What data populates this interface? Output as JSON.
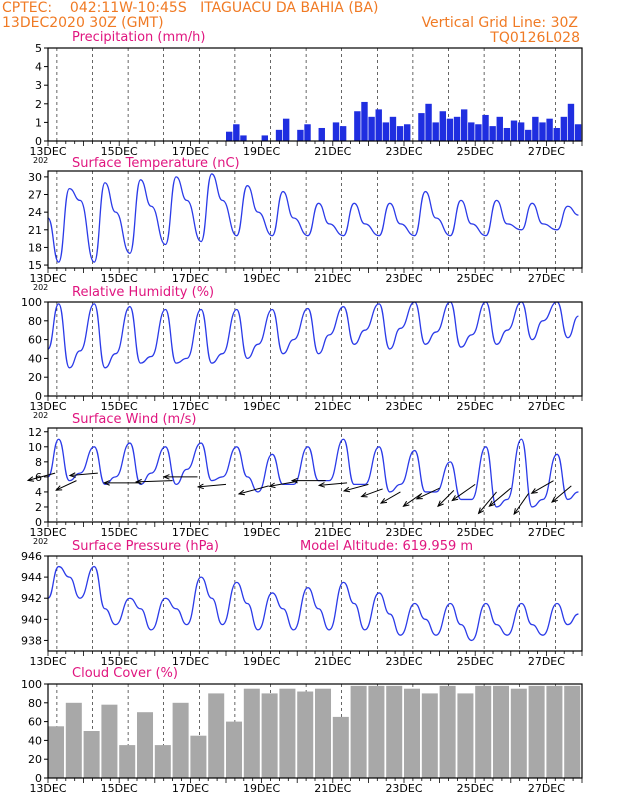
{
  "header": {
    "line1": "CPTEC:    042:11W-10:45S   ITAGUACU DA BAHIA (BA)",
    "line2_left": "13DEC2020 30Z (GMT)",
    "line2_right": "Vertical Grid Line: 30Z",
    "line3_right": "TQ0126L028"
  },
  "colors": {
    "header": "#f07a24",
    "panel_title": "#e0157f",
    "series_line": "#2b3be8",
    "precip_bars": "#1f2ee0",
    "wind_arrows": "#000000",
    "cloud_bars": "#a8a8a8"
  },
  "chart_data": [
    {
      "id": "precip",
      "type": "bar",
      "title": "Precipitation (mm/h)",
      "ylim": [
        0,
        5
      ],
      "yticks": [
        0,
        1,
        2,
        3,
        4,
        5
      ],
      "x_labels": [
        "13DEC",
        "15DEC",
        "17DEC",
        "19DEC",
        "21DEC",
        "23DEC",
        "25DEC",
        "27DEC"
      ],
      "x_stub": "202",
      "x": [
        "18.0",
        "18.2",
        "18.4",
        "19.0",
        "19.4",
        "19.6",
        "20.0",
        "20.2",
        "20.6",
        "21.0",
        "21.2",
        "21.6",
        "21.8",
        "22.0",
        "22.2",
        "22.4",
        "22.6",
        "22.8",
        "23.0",
        "23.4",
        "23.6",
        "23.8",
        "24.0",
        "24.2",
        "24.4",
        "24.6",
        "24.8",
        "25.0",
        "25.2",
        "25.4",
        "25.6",
        "25.8",
        "26.0",
        "26.2",
        "26.4",
        "26.6",
        "26.8",
        "27.0",
        "27.2",
        "27.4",
        "27.6",
        "27.8"
      ],
      "values": [
        0.5,
        0.9,
        0.3,
        0.3,
        0.6,
        1.2,
        0.6,
        0.9,
        0.7,
        1.0,
        0.8,
        1.6,
        2.1,
        1.3,
        1.7,
        1.0,
        1.3,
        0.8,
        0.9,
        1.5,
        2.0,
        1.0,
        1.6,
        1.2,
        1.3,
        1.7,
        1.0,
        0.9,
        1.4,
        0.8,
        1.3,
        0.7,
        1.1,
        1.0,
        0.6,
        1.3,
        1.0,
        1.2,
        0.7,
        1.3,
        2.0,
        0.9
      ],
      "grid": "vertical dashed"
    },
    {
      "id": "temp",
      "type": "line",
      "title": "Surface Temperature (nC)",
      "ylim": [
        14.5,
        31
      ],
      "yticks": [
        15,
        18,
        21,
        24,
        27,
        30
      ],
      "x_labels": [
        "13DEC",
        "15DEC",
        "17DEC",
        "19DEC",
        "21DEC",
        "23DEC",
        "25DEC",
        "27DEC"
      ],
      "x_stub": "202",
      "x": [
        "13.0",
        "13.3",
        "13.6",
        "13.9",
        "14.3",
        "14.6",
        "14.9",
        "15.3",
        "15.6",
        "15.9",
        "16.3",
        "16.6",
        "16.9",
        "17.3",
        "17.6",
        "17.9",
        "18.3",
        "18.6",
        "18.9",
        "19.3",
        "19.6",
        "19.9",
        "20.3",
        "20.6",
        "20.9",
        "21.3",
        "21.6",
        "21.9",
        "22.3",
        "22.6",
        "22.9",
        "23.3",
        "23.6",
        "23.9",
        "24.3",
        "24.6",
        "24.9",
        "25.3",
        "25.6",
        "25.9",
        "26.3",
        "26.6",
        "26.9",
        "27.3",
        "27.6",
        "27.9"
      ],
      "values": [
        23,
        15.5,
        28,
        26,
        15.5,
        29,
        24,
        17,
        29.5,
        25,
        18.5,
        30,
        26,
        19,
        30.5,
        26,
        20,
        28.5,
        24,
        20,
        27.5,
        23,
        20,
        25.5,
        22,
        20,
        25.5,
        22,
        20,
        25.5,
        22,
        20,
        27.5,
        23,
        20,
        26,
        22,
        20,
        26,
        22,
        21,
        25.5,
        22,
        21,
        25,
        23.5
      ],
      "grid": "vertical dashed"
    },
    {
      "id": "rh",
      "type": "line",
      "title": "Relative Humidity (%)",
      "ylim": [
        0,
        100
      ],
      "yticks": [
        0,
        20,
        40,
        60,
        80,
        100
      ],
      "x_labels": [
        "13DEC",
        "15DEC",
        "17DEC",
        "19DEC",
        "21DEC",
        "23DEC",
        "25DEC",
        "27DEC"
      ],
      "x_stub": "202",
      "x": [
        "13.0",
        "13.3",
        "13.6",
        "13.9",
        "14.3",
        "14.6",
        "14.9",
        "15.3",
        "15.6",
        "15.9",
        "16.3",
        "16.6",
        "16.9",
        "17.3",
        "17.6",
        "17.9",
        "18.3",
        "18.6",
        "18.9",
        "19.3",
        "19.6",
        "19.9",
        "20.3",
        "20.6",
        "20.9",
        "21.3",
        "21.6",
        "21.9",
        "22.3",
        "22.6",
        "22.9",
        "23.3",
        "23.6",
        "23.9",
        "24.3",
        "24.6",
        "24.9",
        "25.3",
        "25.6",
        "25.9",
        "26.3",
        "26.6",
        "26.9",
        "27.3",
        "27.6",
        "27.9"
      ],
      "values": [
        50,
        98,
        30,
        48,
        98,
        30,
        45,
        95,
        35,
        42,
        92,
        35,
        40,
        92,
        35,
        45,
        92,
        40,
        55,
        92,
        45,
        60,
        93,
        45,
        65,
        95,
        55,
        70,
        98,
        50,
        72,
        100,
        55,
        68,
        100,
        52,
        65,
        100,
        55,
        70,
        100,
        60,
        80,
        100,
        62,
        85
      ],
      "grid": "vertical dashed"
    },
    {
      "id": "wind",
      "type": "line",
      "title": "Surface Wind (m/s)",
      "ylim": [
        0,
        12.5
      ],
      "yticks": [
        0,
        2,
        4,
        6,
        8,
        10,
        12
      ],
      "x_labels": [
        "13DEC",
        "15DEC",
        "17DEC",
        "19DEC",
        "21DEC",
        "23DEC",
        "25DEC",
        "27DEC"
      ],
      "x_stub": "202",
      "x": [
        "13.0",
        "13.3",
        "13.6",
        "13.9",
        "14.3",
        "14.6",
        "14.9",
        "15.3",
        "15.6",
        "15.9",
        "16.3",
        "16.6",
        "16.9",
        "17.3",
        "17.6",
        "17.9",
        "18.3",
        "18.6",
        "18.9",
        "19.3",
        "19.6",
        "19.9",
        "20.3",
        "20.6",
        "20.9",
        "21.3",
        "21.6",
        "21.9",
        "22.3",
        "22.6",
        "22.9",
        "23.3",
        "23.6",
        "23.9",
        "24.3",
        "24.6",
        "24.9",
        "25.3",
        "25.6",
        "25.9",
        "26.3",
        "26.6",
        "26.9",
        "27.3",
        "27.6",
        "27.9"
      ],
      "values": [
        6,
        11,
        5.5,
        6.5,
        10,
        5,
        6,
        10.5,
        5,
        6.5,
        10,
        5,
        7,
        10.5,
        5.5,
        6,
        10,
        6,
        4,
        9,
        5,
        5,
        10,
        5.5,
        5.5,
        11,
        5,
        5,
        10,
        4,
        5,
        9.5,
        4,
        4,
        8,
        3,
        3,
        10,
        2,
        3,
        11,
        2,
        3,
        9,
        3,
        4
      ],
      "arrows_x": [
        "13.2",
        "13.8",
        "14.4",
        "15.6",
        "16.5",
        "17.2",
        "18.0",
        "19.2",
        "20.0",
        "20.8",
        "21.4",
        "22.0",
        "22.4",
        "22.9",
        "23.5",
        "24.0",
        "24.4",
        "25.0",
        "25.6",
        "26.0",
        "26.5",
        "27.2",
        "27.7"
      ],
      "arrows_y": [
        6.5,
        5.5,
        6.5,
        5.2,
        5.5,
        6.0,
        5.0,
        4.8,
        5.4,
        5.5,
        5.2,
        5.0,
        4.4,
        4.0,
        3.8,
        4.5,
        4.2,
        5.0,
        4.0,
        4.5,
        3.8,
        5.5,
        4.8
      ],
      "arrows_angle": [
        195,
        205,
        185,
        180,
        182,
        180,
        185,
        195,
        190,
        180,
        185,
        195,
        200,
        210,
        215,
        205,
        225,
        215,
        230,
        220,
        235,
        210,
        220
      ],
      "arrows_len": [
        1.0,
        0.8,
        1.0,
        1.3,
        1.3,
        1.2,
        1.0,
        1.1,
        1.0,
        1.2,
        1.0,
        0.9,
        0.8,
        0.8,
        0.8,
        0.9,
        0.8,
        1.0,
        1.0,
        1.0,
        0.9,
        0.9,
        0.9
      ],
      "grid": "vertical dashed"
    },
    {
      "id": "pres",
      "type": "line",
      "title": "Surface Pressure (hPa)",
      "subtitle": "Model Altitude: 619.959 m",
      "ylim": [
        937,
        946
      ],
      "yticks": [
        938,
        940,
        942,
        944,
        946
      ],
      "x_labels": [
        "13DEC",
        "15DEC",
        "17DEC",
        "19DEC",
        "21DEC",
        "23DEC",
        "25DEC",
        "27DEC"
      ],
      "x_stub": "",
      "x": [
        "13.0",
        "13.3",
        "13.6",
        "13.9",
        "14.3",
        "14.6",
        "14.9",
        "15.3",
        "15.6",
        "15.9",
        "16.3",
        "16.6",
        "16.9",
        "17.3",
        "17.6",
        "17.9",
        "18.3",
        "18.6",
        "18.9",
        "19.3",
        "19.6",
        "19.9",
        "20.3",
        "20.6",
        "20.9",
        "21.3",
        "21.6",
        "21.9",
        "22.3",
        "22.6",
        "22.9",
        "23.3",
        "23.6",
        "23.9",
        "24.3",
        "24.6",
        "24.9",
        "25.3",
        "25.6",
        "25.9",
        "26.3",
        "26.6",
        "26.9",
        "27.3",
        "27.6",
        "27.9"
      ],
      "values": [
        942,
        945,
        944,
        942,
        945,
        941,
        939.5,
        942,
        941,
        939,
        942,
        941,
        939.5,
        944,
        942,
        939.5,
        943.5,
        941.5,
        939,
        942.5,
        941,
        939,
        943,
        941,
        939,
        943.5,
        941.5,
        939,
        942.5,
        940.5,
        938.5,
        941.5,
        940,
        938.5,
        941.5,
        939.5,
        938,
        941.5,
        939.5,
        938.5,
        941.5,
        939.5,
        938.5,
        941.5,
        939.5,
        940.5
      ],
      "grid": "vertical dashed"
    },
    {
      "id": "cloud",
      "type": "bar",
      "title": "Cloud Cover (%)",
      "ylim": [
        0,
        100
      ],
      "yticks": [
        0,
        20,
        40,
        60,
        80,
        100
      ],
      "x_labels": [
        "13DEC",
        "15DEC",
        "17DEC",
        "19DEC",
        "21DEC",
        "23DEC",
        "25DEC",
        "27DEC"
      ],
      "x_stub": "",
      "x": [
        "13.0",
        "13.5",
        "14.0",
        "14.5",
        "15.0",
        "15.5",
        "16.0",
        "16.5",
        "17.0",
        "17.5",
        "18.0",
        "18.5",
        "19.0",
        "19.5",
        "20.0",
        "20.5",
        "21.0",
        "21.5",
        "22.0",
        "22.5",
        "23.0",
        "23.5",
        "24.0",
        "24.5",
        "25.0",
        "25.5",
        "26.0",
        "26.5",
        "27.0",
        "27.5"
      ],
      "values": [
        55,
        80,
        50,
        78,
        35,
        70,
        35,
        80,
        45,
        90,
        60,
        95,
        90,
        95,
        92,
        95,
        65,
        98,
        98,
        98,
        95,
        90,
        98,
        90,
        98,
        98,
        95,
        98,
        98,
        98
      ],
      "grid": "vertical dashed"
    }
  ]
}
